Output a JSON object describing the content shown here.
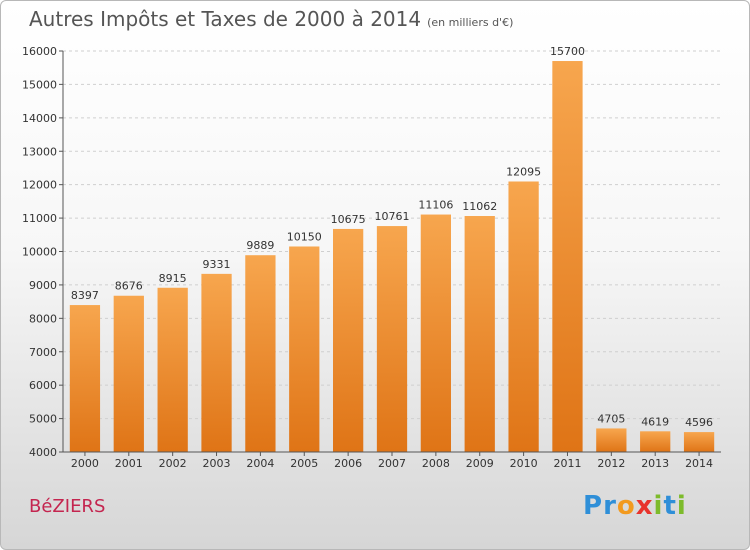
{
  "title": "Autres Impôts et Taxes de 2000 à 2014",
  "subtitle": "(en milliers d'€)",
  "location": "BéZIERS",
  "brand": {
    "text": "Proxiti",
    "letters": [
      {
        "ch": "P",
        "color": "#2f8fd8"
      },
      {
        "ch": "r",
        "color": "#2f8fd8"
      },
      {
        "ch": "o",
        "color": "#f29a1f"
      },
      {
        "ch": "x",
        "color": "#e8332c"
      },
      {
        "ch": "i",
        "color": "#7dbb2b"
      },
      {
        "ch": "t",
        "color": "#2f8fd8"
      },
      {
        "ch": "i",
        "color": "#7dbb2b"
      }
    ]
  },
  "colors": {
    "bar_top": "#f7a64e",
    "bar_bottom": "#df7416",
    "title": "#555555",
    "location": "#c4254f"
  },
  "chart_data": {
    "type": "bar",
    "title": "Autres Impôts et Taxes de 2000 à 2014",
    "subtitle": "(en milliers d'€)",
    "xlabel": "",
    "ylabel": "",
    "categories": [
      "2000",
      "2001",
      "2002",
      "2003",
      "2004",
      "2005",
      "2006",
      "2007",
      "2008",
      "2009",
      "2010",
      "2011",
      "2012",
      "2013",
      "2014"
    ],
    "values": [
      8397,
      8676,
      8915,
      9331,
      9889,
      10150,
      10675,
      10761,
      11106,
      11062,
      12095,
      15700,
      4705,
      4619,
      4596
    ],
    "ylim": [
      4000,
      16000
    ],
    "yticks": [
      4000,
      5000,
      6000,
      7000,
      8000,
      9000,
      10000,
      11000,
      12000,
      13000,
      14000,
      15000,
      16000
    ],
    "grid": true,
    "legend": "none"
  }
}
